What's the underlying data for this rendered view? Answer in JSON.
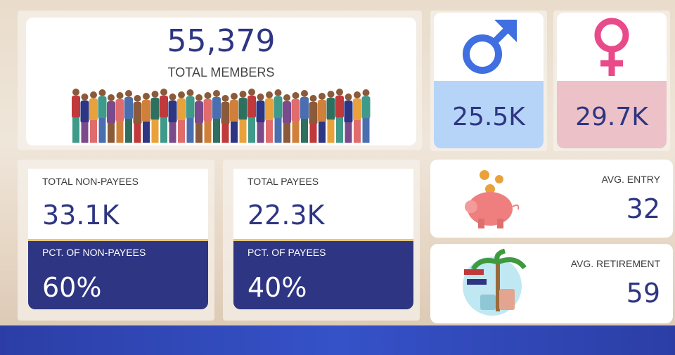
{
  "members": {
    "total": "55,379",
    "label": "TOTAL MEMBERS"
  },
  "gender": {
    "male": "25.5K",
    "female": "29.7K"
  },
  "non_payees": {
    "label": "TOTAL NON-PAYEES",
    "value": "33.1K",
    "pct_label": "PCT. OF NON-PAYEES",
    "pct": "60%"
  },
  "payees": {
    "label": "TOTAL PAYEES",
    "value": "22.3K",
    "pct_label": "PCT. OF PAYEES",
    "pct": "40%"
  },
  "avg_entry": {
    "label": "AVG. ENTRY",
    "value": "32"
  },
  "avg_retirement": {
    "label": "AVG. RETIREMENT",
    "value": "59"
  }
}
